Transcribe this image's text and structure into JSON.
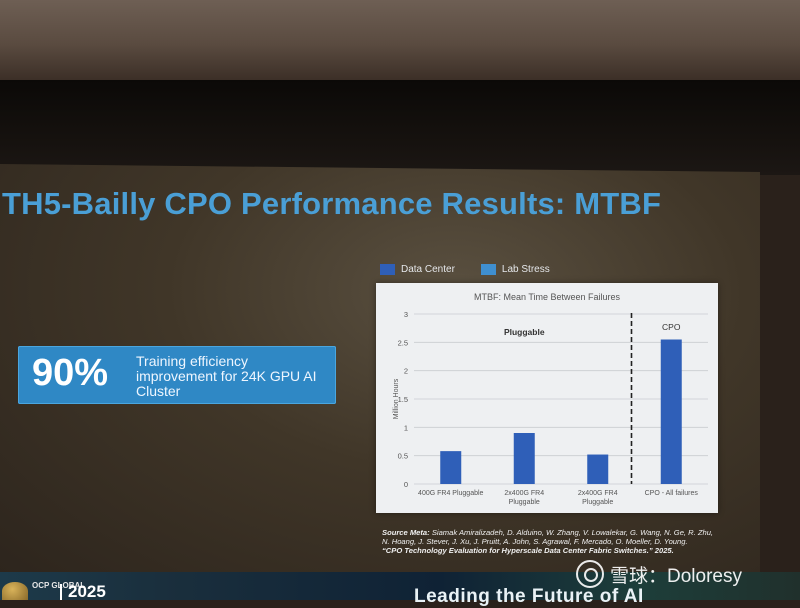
{
  "slide": {
    "title": "TH5-Bailly CPO Performance Results: MTBF",
    "stat": {
      "value": "90%",
      "description": "Training efficiency improvement for 24K GPU AI Cluster"
    },
    "source_label": "Source Meta:",
    "source_authors": "Siamak Amiralizadeh, D. Alduino, W. Zhang, V. Lowalekar, G. Wang, N. Ge, R. Zhu, N. Hoang, J. Stever, J. Xu, J. Pruitt, A. John, S. Agrawal, F. Mercado, O. Moeller, D. Young.",
    "source_title": "“CPO Technology Evaluation for Hyperscale Data Center Fabric Switches.” 2025."
  },
  "legend": {
    "items": [
      {
        "label": "Data Center",
        "color": "#2f5fb8"
      },
      {
        "label": "Lab Stress",
        "color": "#3f8fd0"
      }
    ]
  },
  "chart_data": {
    "type": "bar",
    "title": "MTBF: Mean Time Between Failures",
    "ylabel": "Million Hours",
    "xlabel": "",
    "ylim": [
      0,
      3
    ],
    "yticks": [
      0,
      0.5,
      1,
      1.5,
      2,
      2.5,
      3
    ],
    "ytick_labels": [
      "0",
      "0.5",
      "1",
      "1.5",
      "2",
      "2.5",
      "3"
    ],
    "categories": [
      "400G FR4 Pluggable",
      "2x400G FR4 Pluggable",
      "2x400G FR4 Pluggable",
      "CPO - All failures"
    ],
    "values": [
      0.58,
      0.9,
      0.52,
      2.55
    ],
    "bar_color": "#2f5fb8",
    "grid": true,
    "annotations": [
      "Pluggable",
      "CPO"
    ]
  },
  "footer": {
    "org": "OCP GLOBAL",
    "year": "2025",
    "tagline": "Leading the Future of AI"
  },
  "watermark": "雪球：Doloresy"
}
